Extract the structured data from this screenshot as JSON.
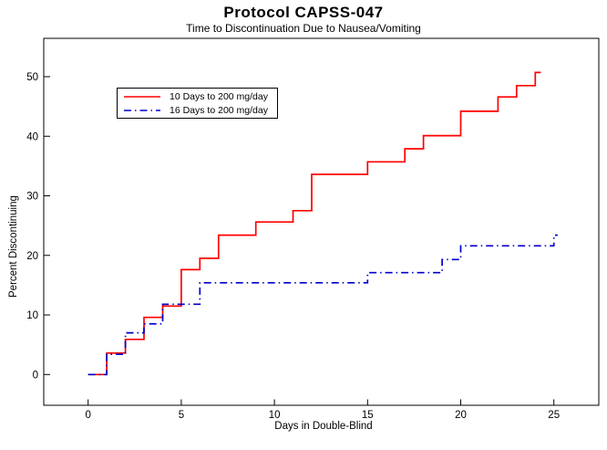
{
  "chart_data": {
    "type": "line",
    "subtype": "kaplan-meier-step",
    "title": "Protocol CAPSS-047",
    "subtitle": "Time to Discontinuation Due to Nausea/Vomiting",
    "xlabel": "Days in Double-Blind",
    "ylabel": "Percent Discontinuing",
    "xticks": [
      0,
      5,
      10,
      15,
      20,
      25
    ],
    "yticks": [
      0,
      10,
      20,
      30,
      40,
      50
    ],
    "xlim": [
      0,
      27.4
    ],
    "ylim": [
      0,
      56.4
    ],
    "grid": false,
    "legend_position": "upper-left-inside",
    "axis_color": "#000000",
    "background_color": "#ffffff",
    "series": [
      {
        "name": "10 Days to 200 mg/day",
        "color": "#ff0000",
        "style": "solid",
        "points": [
          [
            0,
            0
          ],
          [
            1,
            0
          ],
          [
            1,
            3.6
          ],
          [
            2,
            3.6
          ],
          [
            2,
            5.9
          ],
          [
            3,
            5.9
          ],
          [
            3,
            9.6
          ],
          [
            4,
            9.6
          ],
          [
            4,
            11.5
          ],
          [
            5,
            11.5
          ],
          [
            5,
            17.6
          ],
          [
            6,
            17.6
          ],
          [
            6,
            19.5
          ],
          [
            7,
            19.5
          ],
          [
            7,
            23.4
          ],
          [
            9,
            23.4
          ],
          [
            9,
            25.6
          ],
          [
            11,
            25.6
          ],
          [
            11,
            27.5
          ],
          [
            12,
            27.5
          ],
          [
            12,
            33.6
          ],
          [
            15,
            33.6
          ],
          [
            15,
            35.7
          ],
          [
            17,
            35.7
          ],
          [
            17,
            37.9
          ],
          [
            18,
            37.9
          ],
          [
            18,
            40.1
          ],
          [
            20,
            40.1
          ],
          [
            20,
            44.2
          ],
          [
            22,
            44.2
          ],
          [
            22,
            46.6
          ],
          [
            23,
            46.6
          ],
          [
            23,
            48.5
          ],
          [
            24,
            48.5
          ],
          [
            24,
            50.7
          ],
          [
            24.3,
            50.7
          ]
        ]
      },
      {
        "name": "16 Days to 200 mg/day",
        "color": "#0000cc",
        "style": "dashdot",
        "points": [
          [
            0,
            0
          ],
          [
            1,
            0
          ],
          [
            1,
            3.4
          ],
          [
            2,
            3.4
          ],
          [
            2,
            7.0
          ],
          [
            3,
            7.0
          ],
          [
            3,
            8.5
          ],
          [
            4,
            8.5
          ],
          [
            4,
            11.8
          ],
          [
            6,
            11.8
          ],
          [
            6,
            15.4
          ],
          [
            15,
            15.4
          ],
          [
            15,
            17.1
          ],
          [
            19,
            17.1
          ],
          [
            19,
            19.3
          ],
          [
            20,
            19.3
          ],
          [
            20,
            21.6
          ],
          [
            25,
            21.6
          ],
          [
            25,
            23.4
          ],
          [
            25.2,
            23.4
          ]
        ]
      }
    ]
  }
}
